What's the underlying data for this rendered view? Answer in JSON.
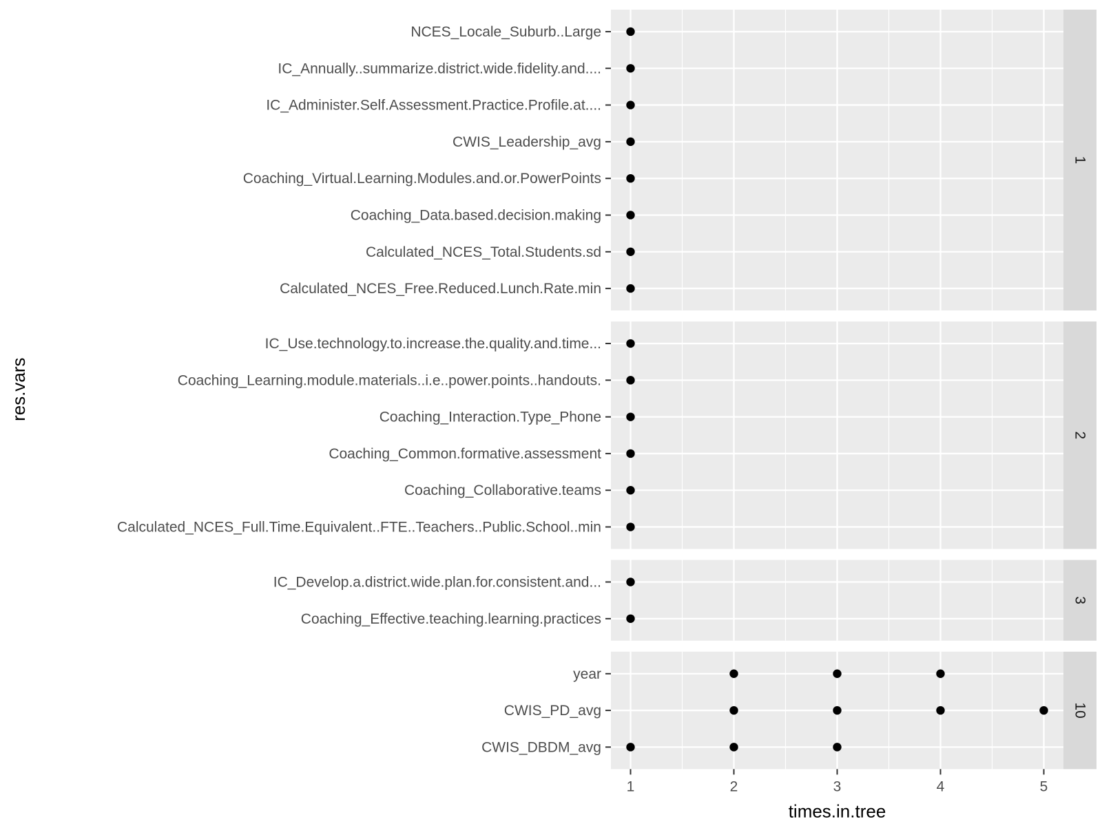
{
  "chart_data": {
    "type": "scatter",
    "xlabel": "times.in.tree",
    "ylabel": "res.vars",
    "xlim": [
      0.81,
      5.19
    ],
    "x_ticks": [
      1,
      2,
      3,
      4,
      5
    ],
    "x_tick_labels": [
      "1",
      "2",
      "3",
      "4",
      "5"
    ],
    "grid": true,
    "theme": "ggplot2 grey",
    "colors": {
      "panel_background": "#EBEBEB",
      "grid_major": "#FFFFFF",
      "strip_background": "#D9D9D9",
      "point": "#000000",
      "tick_text": "#4D4D4D"
    },
    "facets": [
      {
        "label": "1",
        "categories": [
          "NCES_Locale_Suburb..Large",
          "IC_Annually..summarize.district.wide.fidelity.and....",
          "IC_Administer.Self.Assessment.Practice.Profile.at....",
          "CWIS_Leadership_avg",
          "Coaching_Virtual.Learning.Modules.and.or.PowerPoints",
          "Coaching_Data.based.decision.making",
          "Calculated_NCES_Total.Students.sd",
          "Calculated_NCES_Free.Reduced.Lunch.Rate.min"
        ],
        "points": [
          {
            "y": "NCES_Locale_Suburb..Large",
            "x": [
              1
            ]
          },
          {
            "y": "IC_Annually..summarize.district.wide.fidelity.and....",
            "x": [
              1
            ]
          },
          {
            "y": "IC_Administer.Self.Assessment.Practice.Profile.at....",
            "x": [
              1
            ]
          },
          {
            "y": "CWIS_Leadership_avg",
            "x": [
              1
            ]
          },
          {
            "y": "Coaching_Virtual.Learning.Modules.and.or.PowerPoints",
            "x": [
              1
            ]
          },
          {
            "y": "Coaching_Data.based.decision.making",
            "x": [
              1
            ]
          },
          {
            "y": "Calculated_NCES_Total.Students.sd",
            "x": [
              1
            ]
          },
          {
            "y": "Calculated_NCES_Free.Reduced.Lunch.Rate.min",
            "x": [
              1
            ]
          }
        ]
      },
      {
        "label": "2",
        "categories": [
          "IC_Use.technology.to.increase.the.quality.and.time...",
          "Coaching_Learning.module.materials..i.e..power.points..handouts.",
          "Coaching_Interaction.Type_Phone",
          "Coaching_Common.formative.assessment",
          "Coaching_Collaborative.teams",
          "Calculated_NCES_Full.Time.Equivalent..FTE..Teachers..Public.School..min"
        ],
        "points": [
          {
            "y": "IC_Use.technology.to.increase.the.quality.and.time...",
            "x": [
              1
            ]
          },
          {
            "y": "Coaching_Learning.module.materials..i.e..power.points..handouts.",
            "x": [
              1
            ]
          },
          {
            "y": "Coaching_Interaction.Type_Phone",
            "x": [
              1
            ]
          },
          {
            "y": "Coaching_Common.formative.assessment",
            "x": [
              1
            ]
          },
          {
            "y": "Coaching_Collaborative.teams",
            "x": [
              1
            ]
          },
          {
            "y": "Calculated_NCES_Full.Time.Equivalent..FTE..Teachers..Public.School..min",
            "x": [
              1
            ]
          }
        ]
      },
      {
        "label": "3",
        "categories": [
          "IC_Develop.a.district.wide.plan.for.consistent.and...",
          "Coaching_Effective.teaching.learning.practices"
        ],
        "points": [
          {
            "y": "IC_Develop.a.district.wide.plan.for.consistent.and...",
            "x": [
              1
            ]
          },
          {
            "y": "Coaching_Effective.teaching.learning.practices",
            "x": [
              1
            ]
          }
        ]
      },
      {
        "label": "10",
        "categories": [
          "year",
          "CWIS_PD_avg",
          "CWIS_DBDM_avg"
        ],
        "points": [
          {
            "y": "year",
            "x": [
              2,
              3,
              4
            ]
          },
          {
            "y": "CWIS_PD_avg",
            "x": [
              2,
              3,
              4,
              5
            ]
          },
          {
            "y": "CWIS_DBDM_avg",
            "x": [
              1,
              2,
              3
            ]
          }
        ]
      }
    ]
  }
}
